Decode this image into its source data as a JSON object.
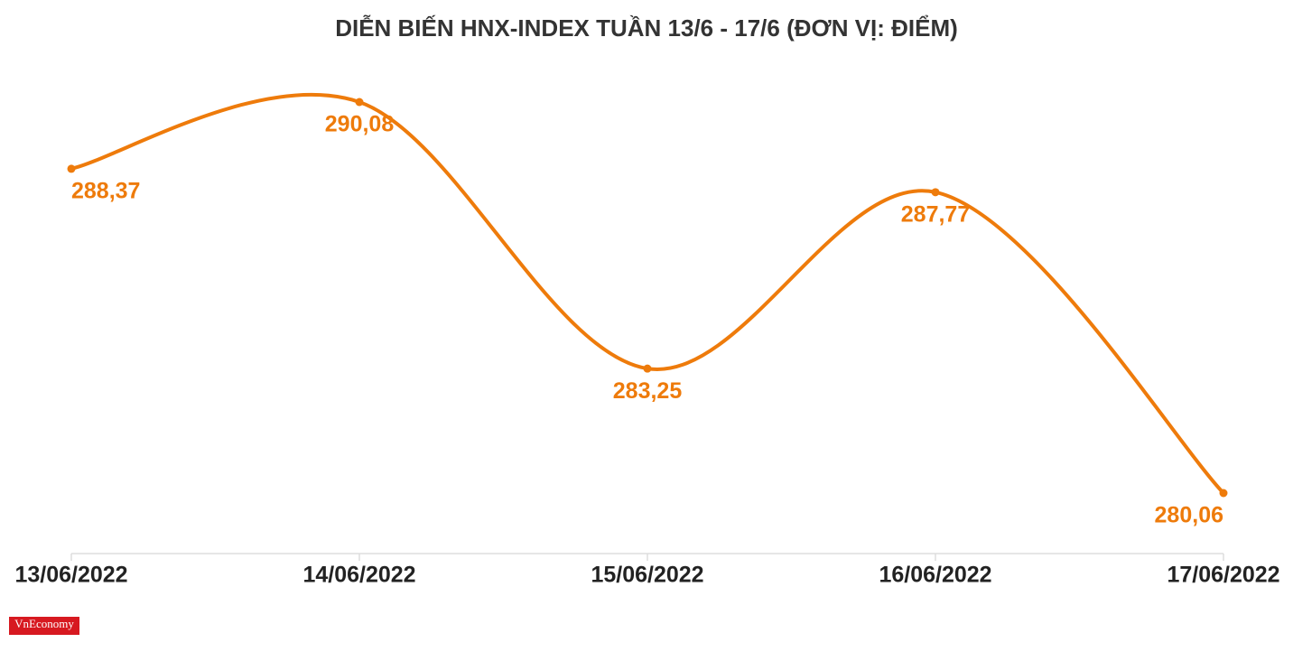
{
  "chart_data": {
    "type": "line",
    "title": "DIỄN BIẾN HNX-INDEX TUẦN 13/6 - 17/6 (ĐƠN VỊ: ĐIỂM)",
    "categories": [
      "13/06/2022",
      "14/06/2022",
      "15/06/2022",
      "16/06/2022",
      "17/06/2022"
    ],
    "series": [
      {
        "color": "#ee7b0b",
        "values": [
          288.37,
          290.08,
          283.25,
          287.77,
          280.06
        ],
        "value_labels": [
          "288,37",
          "290,08",
          "283,25",
          "287,77",
          "280,06"
        ]
      }
    ],
    "logo": "VnEconomy"
  }
}
